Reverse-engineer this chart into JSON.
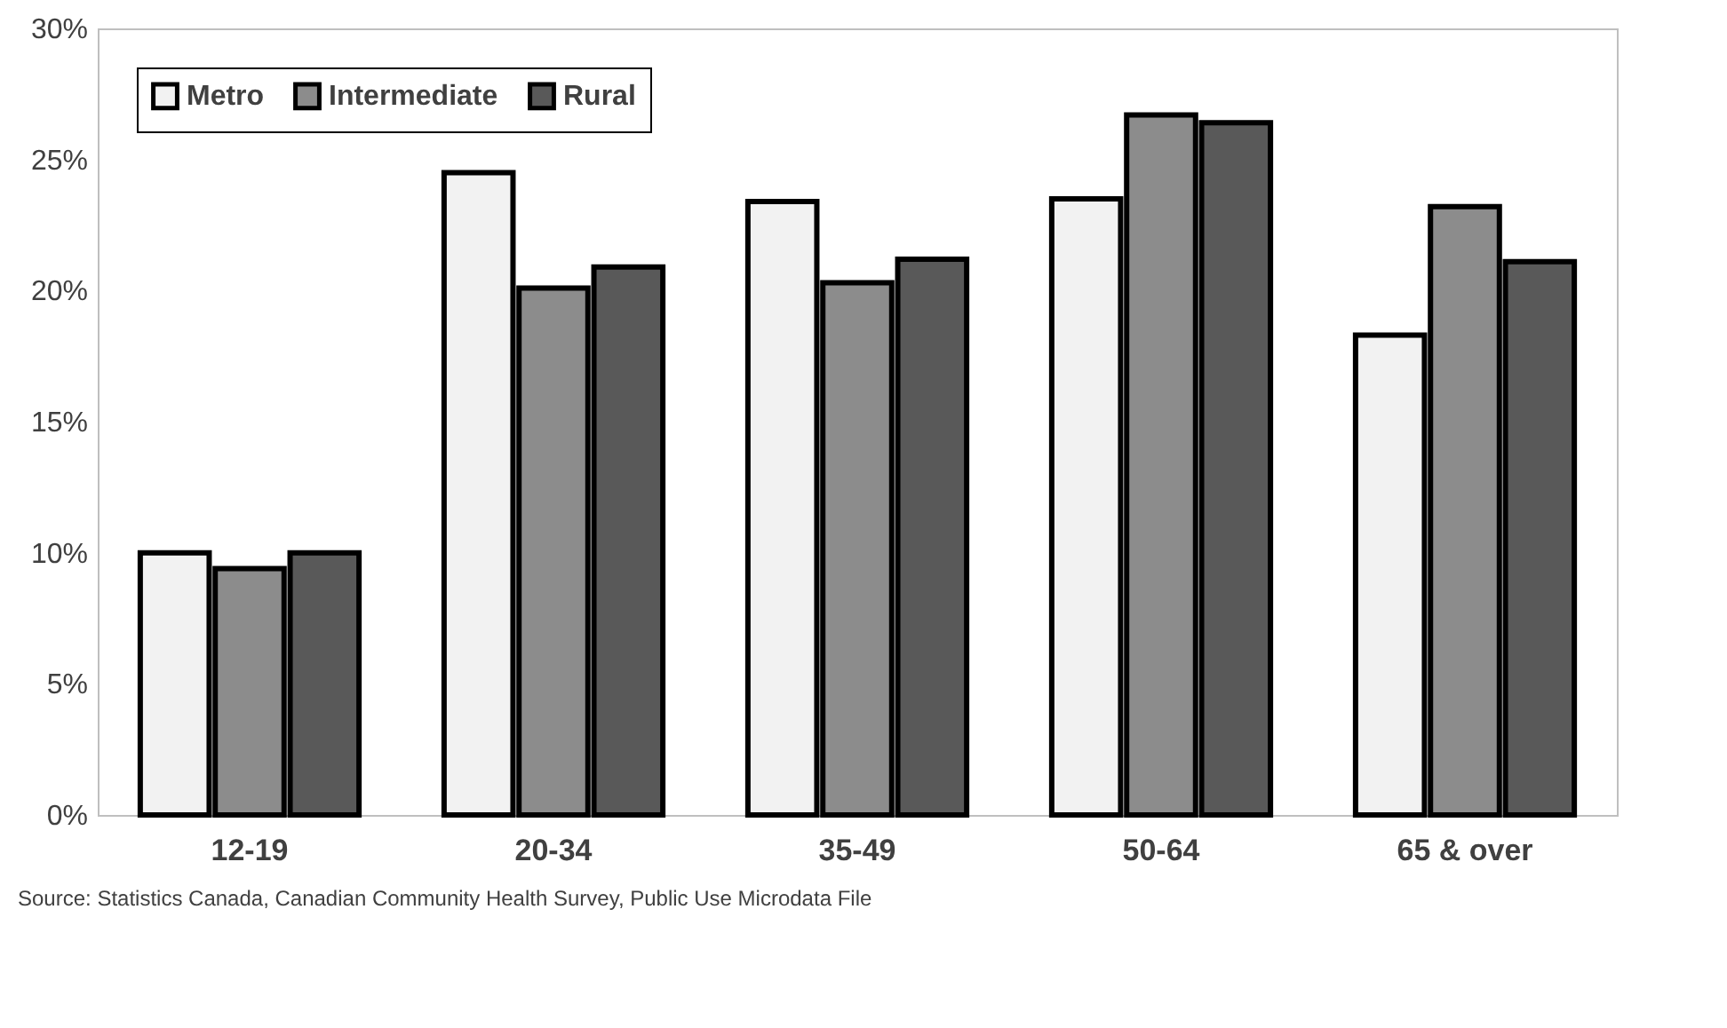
{
  "chart_data": {
    "type": "bar",
    "categories": [
      "12-19",
      "20-34",
      "35-49",
      "50-64",
      "65 & over"
    ],
    "series": [
      {
        "name": "Metro",
        "color": "#f2f2f2",
        "values": [
          10.0,
          24.5,
          23.4,
          23.5,
          18.3
        ]
      },
      {
        "name": "Intermediate",
        "color": "#8c8c8c",
        "values": [
          9.4,
          20.1,
          20.3,
          26.7,
          23.2
        ]
      },
      {
        "name": "Rural",
        "color": "#595959",
        "values": [
          10.0,
          20.9,
          21.2,
          26.4,
          21.1
        ]
      }
    ],
    "ylim": [
      0,
      30
    ],
    "yticks": [
      {
        "value": 0,
        "label": "0%"
      },
      {
        "value": 5,
        "label": "5%"
      },
      {
        "value": 10,
        "label": "10%"
      },
      {
        "value": 15,
        "label": "15%"
      },
      {
        "value": 20,
        "label": "20%"
      },
      {
        "value": 25,
        "label": "25%"
      },
      {
        "value": 30,
        "label": "30%"
      }
    ],
    "grid": false,
    "legend": "top left",
    "annotations": [
      "Source: Statistics Canada, Canadian Community Health Survey, Public Use Microdata File"
    ]
  }
}
